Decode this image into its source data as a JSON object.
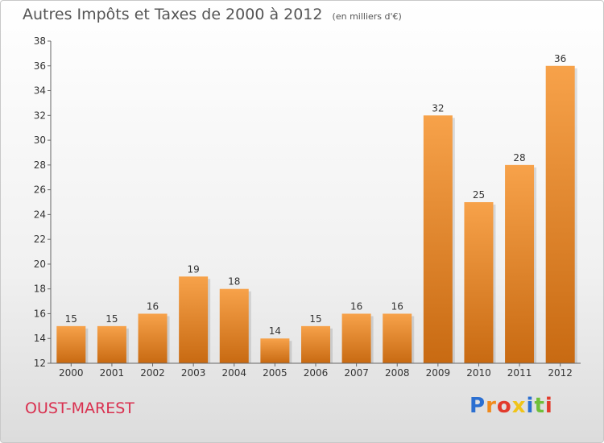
{
  "header": {
    "title": "Autres Impôts et Taxes de 2000 à 2012",
    "subtitle": "(en milliers d'€)"
  },
  "footer": {
    "town": "OUST-MAREST",
    "brand_letters": [
      {
        "ch": "P",
        "color": "#2b6fd1"
      },
      {
        "ch": "r",
        "color": "#f08a1c"
      },
      {
        "ch": "o",
        "color": "#e23b2c"
      },
      {
        "ch": "x",
        "color": "#f0c419"
      },
      {
        "ch": "i",
        "color": "#2b6fd1"
      },
      {
        "ch": "t",
        "color": "#6fbf3a"
      },
      {
        "ch": "i",
        "color": "#e23b2c"
      }
    ]
  },
  "chart_data": {
    "type": "bar",
    "title": "Autres Impôts et Taxes de 2000 à 2012",
    "subtitle": "(en milliers d'€)",
    "categories": [
      "2000",
      "2001",
      "2002",
      "2003",
      "2004",
      "2005",
      "2006",
      "2007",
      "2008",
      "2009",
      "2010",
      "2011",
      "2012"
    ],
    "values": [
      15,
      15,
      16,
      19,
      18,
      14,
      15,
      16,
      16,
      32,
      25,
      28,
      36
    ],
    "ylim": [
      12,
      38
    ],
    "yticks": [
      12,
      14,
      16,
      18,
      20,
      22,
      24,
      26,
      28,
      30,
      32,
      34,
      36,
      38
    ],
    "grid": false,
    "bar_color_top": "#f7a24a",
    "bar_color_bottom": "#c86a12"
  }
}
